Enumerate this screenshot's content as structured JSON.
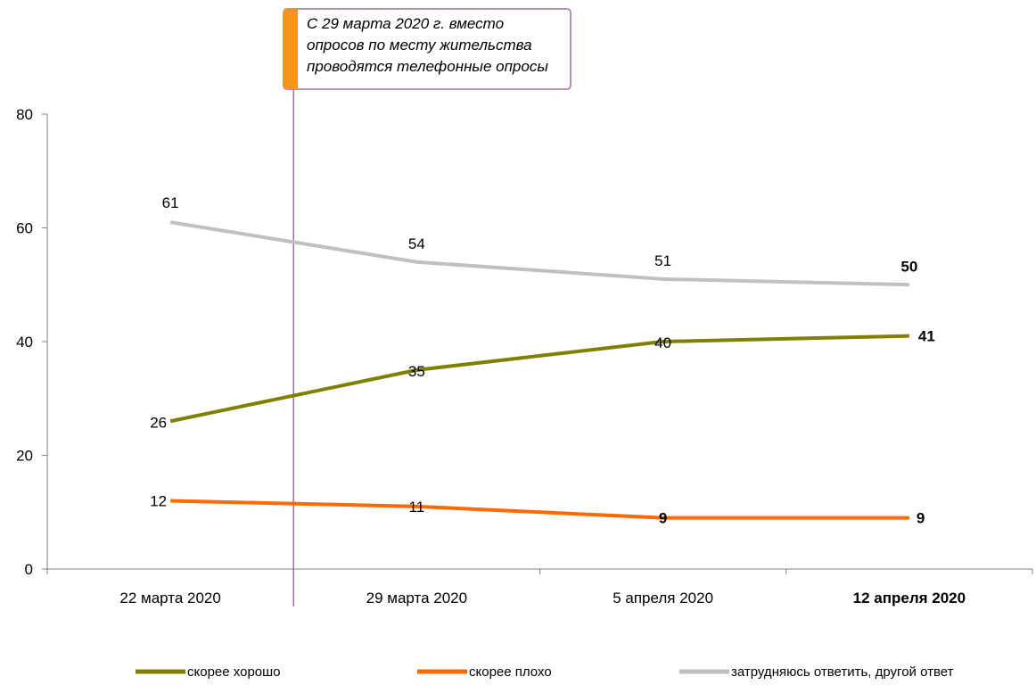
{
  "chart_data": {
    "type": "line",
    "categories": [
      "22 марта 2020",
      "29 марта 2020",
      "5 апреля 2020",
      "12 апреля 2020"
    ],
    "bold_categories": [
      false,
      false,
      false,
      true
    ],
    "ylim": [
      0,
      80
    ],
    "yticks": [
      0,
      20,
      40,
      60,
      80
    ],
    "grid": false,
    "legend_position": "bottom",
    "series": [
      {
        "name": "скорее хорошо",
        "color": "#808000",
        "values": [
          26,
          35,
          40,
          41
        ],
        "bold_labels": [
          false,
          false,
          false,
          true
        ]
      },
      {
        "name": "скорее плохо",
        "color": "#ff6a00",
        "values": [
          12,
          11,
          9,
          9
        ],
        "bold_labels": [
          false,
          false,
          true,
          true
        ]
      },
      {
        "name": "затрудняюсь ответить, другой ответ",
        "color": "#c0c0c0",
        "values": [
          61,
          54,
          51,
          50
        ],
        "bold_labels": [
          false,
          false,
          false,
          true
        ]
      }
    ],
    "annotation": {
      "lines": [
        "С 29 марта 2020 г. вместо",
        "опросов по месту жительства",
        "проводятся телефонные опросы"
      ],
      "marker_color": "#f7941d",
      "border_color": "#9b6fa3"
    }
  }
}
